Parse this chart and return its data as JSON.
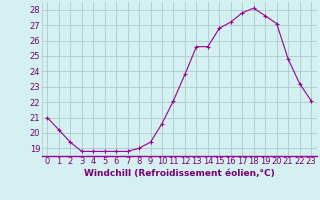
{
  "x": [
    0,
    1,
    2,
    3,
    4,
    5,
    6,
    7,
    8,
    9,
    10,
    11,
    12,
    13,
    14,
    15,
    16,
    17,
    18,
    19,
    20,
    21,
    22,
    23
  ],
  "y": [
    21.0,
    20.2,
    19.4,
    18.8,
    18.8,
    18.8,
    18.8,
    18.8,
    19.0,
    19.4,
    20.6,
    22.1,
    23.8,
    25.6,
    25.6,
    26.8,
    27.2,
    27.8,
    28.1,
    27.6,
    27.1,
    24.8,
    23.2,
    22.1
  ],
  "line_color": "#990099",
  "marker": "+",
  "marker_size": 3,
  "bg_color": "#d4f0f0",
  "grid_color": "#aacccc",
  "xlabel": "Windchill (Refroidissement éolien,°C)",
  "ylabel_ticks": [
    19,
    20,
    21,
    22,
    23,
    24,
    25,
    26,
    27,
    28
  ],
  "xlim": [
    -0.5,
    23.5
  ],
  "ylim": [
    18.5,
    28.5
  ],
  "xlabel_fontsize": 6.5,
  "tick_fontsize": 6.0,
  "xlabel_color": "#770077",
  "tick_color": "#770077"
}
